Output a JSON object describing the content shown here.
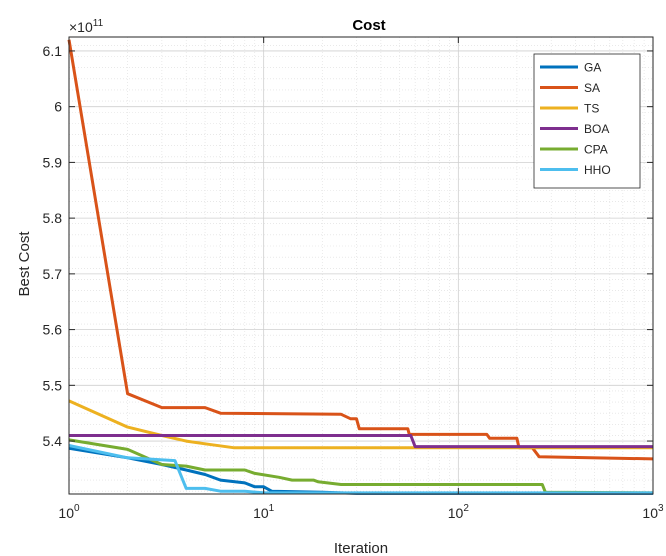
{
  "chart_data": {
    "type": "line",
    "title": "Cost",
    "xlabel": "Iteration",
    "ylabel": "Best Cost",
    "x_scale": "log",
    "xlim": [
      1,
      1000
    ],
    "ylim": [
      5.305,
      6.125
    ],
    "y_exponent_label": "×10",
    "y_exponent_value": "11",
    "grid": true,
    "minor_grid": true,
    "legend_position": "top-right",
    "xticks": [
      {
        "value": 1,
        "base": "10",
        "exp": "0"
      },
      {
        "value": 10,
        "base": "10",
        "exp": "1"
      },
      {
        "value": 100,
        "base": "10",
        "exp": "2"
      },
      {
        "value": 1000,
        "base": "10",
        "exp": "3"
      }
    ],
    "yticks": [
      {
        "value": 5.4,
        "label": "5.4"
      },
      {
        "value": 5.5,
        "label": "5.5"
      },
      {
        "value": 5.6,
        "label": "5.6"
      },
      {
        "value": 5.7,
        "label": "5.7"
      },
      {
        "value": 5.8,
        "label": "5.8"
      },
      {
        "value": 5.9,
        "label": "5.9"
      },
      {
        "value": 6.0,
        "label": "6"
      },
      {
        "value": 6.1,
        "label": "6.1"
      }
    ],
    "series": [
      {
        "name": "GA",
        "color": "#0072BD",
        "points": [
          [
            1,
            5.387
          ],
          [
            2,
            5.37
          ],
          [
            3,
            5.358
          ],
          [
            4,
            5.348
          ],
          [
            5,
            5.34
          ],
          [
            6,
            5.33
          ],
          [
            8,
            5.325
          ],
          [
            9,
            5.318
          ],
          [
            10,
            5.318
          ],
          [
            11,
            5.31
          ],
          [
            20,
            5.308
          ],
          [
            25,
            5.307
          ],
          [
            30,
            5.306
          ],
          [
            1000,
            5.306
          ]
        ]
      },
      {
        "name": "SA",
        "color": "#D95319",
        "points": [
          [
            1,
            6.12
          ],
          [
            2,
            5.485
          ],
          [
            3,
            5.46
          ],
          [
            5,
            5.46
          ],
          [
            6,
            5.45
          ],
          [
            25,
            5.448
          ],
          [
            28,
            5.44
          ],
          [
            30,
            5.44
          ],
          [
            31,
            5.422
          ],
          [
            55,
            5.422
          ],
          [
            56,
            5.412
          ],
          [
            140,
            5.412
          ],
          [
            145,
            5.405
          ],
          [
            200,
            5.405
          ],
          [
            205,
            5.388
          ],
          [
            240,
            5.388
          ],
          [
            260,
            5.372
          ],
          [
            1000,
            5.368
          ]
        ]
      },
      {
        "name": "TS",
        "color": "#EDB120",
        "points": [
          [
            1,
            5.472
          ],
          [
            2,
            5.425
          ],
          [
            3,
            5.41
          ],
          [
            4,
            5.4
          ],
          [
            5,
            5.395
          ],
          [
            7,
            5.388
          ],
          [
            60,
            5.388
          ],
          [
            1000,
            5.388
          ]
        ]
      },
      {
        "name": "BOA",
        "color": "#7E2F8E",
        "points": [
          [
            1,
            5.41
          ],
          [
            57,
            5.41
          ],
          [
            60,
            5.39
          ],
          [
            1000,
            5.39
          ]
        ]
      },
      {
        "name": "CPA",
        "color": "#77AC30",
        "points": [
          [
            1,
            5.402
          ],
          [
            2,
            5.385
          ],
          [
            3,
            5.358
          ],
          [
            4,
            5.355
          ],
          [
            5,
            5.348
          ],
          [
            8,
            5.348
          ],
          [
            9,
            5.342
          ],
          [
            12,
            5.335
          ],
          [
            14,
            5.33
          ],
          [
            18,
            5.33
          ],
          [
            19,
            5.327
          ],
          [
            25,
            5.322
          ],
          [
            270,
            5.322
          ],
          [
            280,
            5.308
          ],
          [
            1000,
            5.307
          ]
        ]
      },
      {
        "name": "HHO",
        "color": "#4DBEEE",
        "points": [
          [
            1,
            5.392
          ],
          [
            2,
            5.37
          ],
          [
            3.5,
            5.365
          ],
          [
            4,
            5.315
          ],
          [
            5,
            5.315
          ],
          [
            6,
            5.31
          ],
          [
            8,
            5.31
          ],
          [
            10,
            5.307
          ],
          [
            1000,
            5.307
          ]
        ]
      }
    ]
  }
}
